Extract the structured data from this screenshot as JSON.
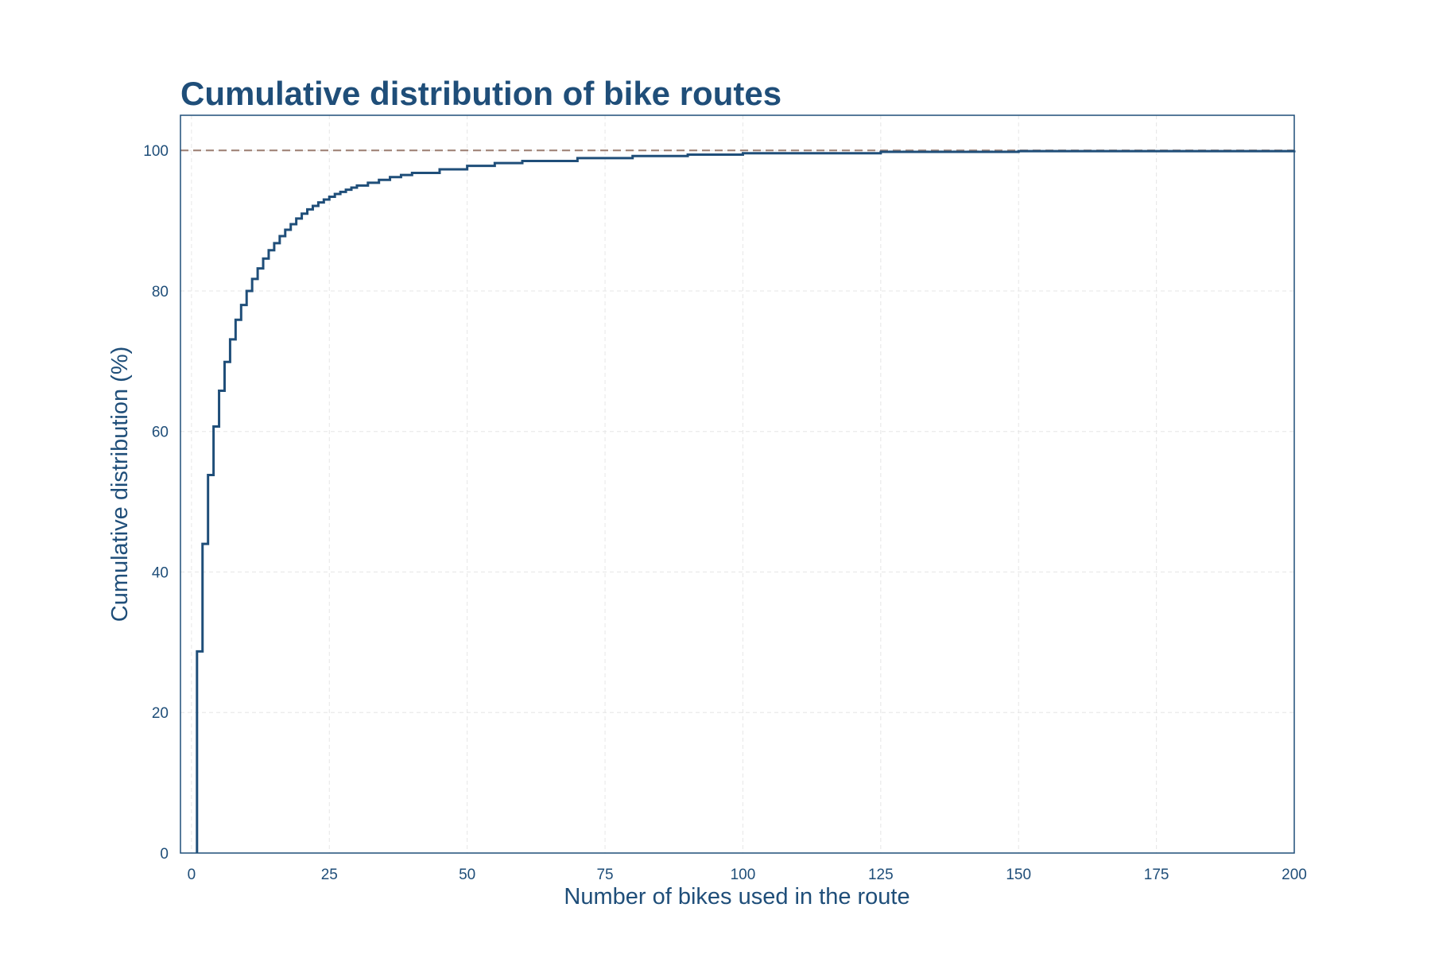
{
  "colors": {
    "primary": "#1f4e79",
    "reference": "#a08478",
    "grid": "#e6e6e6"
  },
  "chart_data": {
    "type": "line",
    "step": true,
    "title": "Cumulative distribution of bike routes",
    "xlabel": "Number of bikes used in the route",
    "ylabel": "Cumulative distribution (%)",
    "xlim": [
      -2,
      200
    ],
    "ylim": [
      0,
      105
    ],
    "xticks": [
      0,
      25,
      50,
      75,
      100,
      125,
      150,
      175,
      200
    ],
    "yticks": [
      0,
      20,
      40,
      60,
      80,
      100
    ],
    "grid": true,
    "legend": "none",
    "reference_line": {
      "orientation": "horizontal",
      "y": 100,
      "style": "dashed"
    },
    "series": [
      {
        "x": [
          1,
          2,
          3,
          4,
          5,
          6,
          7,
          8,
          9,
          10,
          11,
          12,
          13,
          14,
          15,
          16,
          17,
          18,
          19,
          20,
          21,
          22,
          23,
          24,
          25,
          26,
          27,
          28,
          29,
          30,
          32,
          34,
          36,
          38,
          40,
          45,
          50,
          55,
          60,
          70,
          80,
          90,
          100,
          125,
          150,
          200
        ],
        "y": [
          28.7,
          44.0,
          53.8,
          60.7,
          65.8,
          69.9,
          73.1,
          75.9,
          78.0,
          80.0,
          81.7,
          83.2,
          84.6,
          85.8,
          86.8,
          87.8,
          88.7,
          89.5,
          90.3,
          91.0,
          91.6,
          92.1,
          92.6,
          93.0,
          93.4,
          93.8,
          94.1,
          94.4,
          94.7,
          95.0,
          95.4,
          95.8,
          96.2,
          96.5,
          96.8,
          97.3,
          97.8,
          98.2,
          98.5,
          98.9,
          99.2,
          99.4,
          99.6,
          99.8,
          99.9,
          100.0
        ]
      }
    ]
  }
}
